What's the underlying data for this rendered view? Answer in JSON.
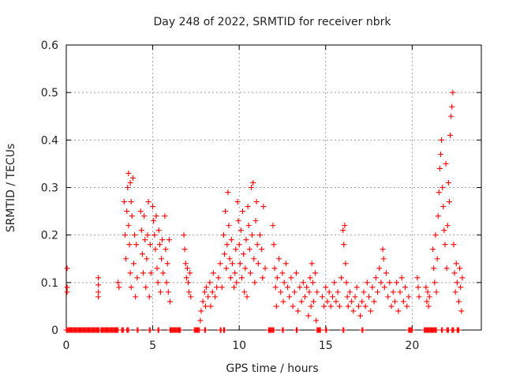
{
  "chart_data": {
    "type": "scatter",
    "title": "Day 248 of 2022, SRMTID for receiver nbrk",
    "xlabel": "GPS time / hours",
    "ylabel": "SRMTID / TECUs",
    "xlim": [
      0,
      24
    ],
    "ylim": [
      0,
      0.6
    ],
    "xticks": [
      0,
      5,
      10,
      15,
      20
    ],
    "yticks": [
      0,
      0.1,
      0.2,
      0.3,
      0.4,
      0.5,
      0.6
    ],
    "grid": true,
    "marker": "plus",
    "color": "#ff0000",
    "series": [
      {
        "name": "SRMTID",
        "points": [
          [
            0.05,
            0.13
          ],
          [
            0.05,
            0.09
          ],
          [
            0.05,
            0.08
          ],
          [
            1.85,
            0.11
          ],
          [
            1.85,
            0.08
          ],
          [
            1.85,
            0.07
          ],
          [
            1.85,
            0.095
          ],
          [
            3.0,
            0.1
          ],
          [
            3.05,
            0.09
          ],
          [
            3.35,
            0.27
          ],
          [
            3.4,
            0.2
          ],
          [
            3.45,
            0.15
          ],
          [
            3.5,
            0.25
          ],
          [
            3.55,
            0.3
          ],
          [
            3.6,
            0.33
          ],
          [
            3.6,
            0.22
          ],
          [
            3.65,
            0.18
          ],
          [
            3.7,
            0.31
          ],
          [
            3.7,
            0.12
          ],
          [
            3.75,
            0.27
          ],
          [
            3.75,
            0.09
          ],
          [
            3.8,
            0.24
          ],
          [
            3.85,
            0.32
          ],
          [
            3.9,
            0.14
          ],
          [
            3.95,
            0.2
          ],
          [
            4.0,
            0.07
          ],
          [
            4.05,
            0.18
          ],
          [
            4.1,
            0.11
          ],
          [
            4.3,
            0.25
          ],
          [
            4.35,
            0.21
          ],
          [
            4.4,
            0.16
          ],
          [
            4.45,
            0.12
          ],
          [
            4.5,
            0.24
          ],
          [
            4.55,
            0.19
          ],
          [
            4.6,
            0.09
          ],
          [
            4.65,
            0.15
          ],
          [
            4.7,
            0.2
          ],
          [
            4.75,
            0.27
          ],
          [
            4.8,
            0.07
          ],
          [
            4.85,
            0.18
          ],
          [
            4.9,
            0.12
          ],
          [
            5.0,
            0.26
          ],
          [
            5.05,
            0.23
          ],
          [
            5.1,
            0.2
          ],
          [
            5.15,
            0.17
          ],
          [
            5.2,
            0.24
          ],
          [
            5.25,
            0.13
          ],
          [
            5.3,
            0.1
          ],
          [
            5.35,
            0.21
          ],
          [
            5.4,
            0.18
          ],
          [
            5.45,
            0.08
          ],
          [
            5.5,
            0.15
          ],
          [
            5.55,
            0.19
          ],
          [
            5.6,
            0.12
          ],
          [
            5.7,
            0.24
          ],
          [
            5.75,
            0.17
          ],
          [
            5.8,
            0.1
          ],
          [
            5.85,
            0.14
          ],
          [
            5.9,
            0.08
          ],
          [
            5.95,
            0.19
          ],
          [
            6.0,
            0.06
          ],
          [
            6.8,
            0.2
          ],
          [
            6.85,
            0.17
          ],
          [
            6.9,
            0.14
          ],
          [
            6.95,
            0.11
          ],
          [
            7.0,
            0.13
          ],
          [
            7.05,
            0.1
          ],
          [
            7.1,
            0.08
          ],
          [
            7.15,
            0.12
          ],
          [
            7.2,
            0.07
          ],
          [
            7.75,
            0.02
          ],
          [
            7.8,
            0.04
          ],
          [
            7.9,
            0.06
          ],
          [
            8.0,
            0.08
          ],
          [
            8.05,
            0.05
          ],
          [
            8.1,
            0.09
          ],
          [
            8.2,
            0.07
          ],
          [
            8.3,
            0.1
          ],
          [
            8.35,
            0.05
          ],
          [
            8.45,
            0.08
          ],
          [
            8.5,
            0.12
          ],
          [
            8.6,
            0.07
          ],
          [
            8.7,
            0.09
          ],
          [
            8.8,
            0.11
          ],
          [
            8.9,
            0.14
          ],
          [
            9.0,
            0.09
          ],
          [
            9.1,
            0.2
          ],
          [
            9.15,
            0.16
          ],
          [
            9.2,
            0.25
          ],
          [
            9.25,
            0.13
          ],
          [
            9.3,
            0.18
          ],
          [
            9.35,
            0.29
          ],
          [
            9.4,
            0.22
          ],
          [
            9.45,
            0.15
          ],
          [
            9.5,
            0.11
          ],
          [
            9.55,
            0.19
          ],
          [
            9.6,
            0.14
          ],
          [
            9.7,
            0.09
          ],
          [
            9.75,
            0.12
          ],
          [
            9.8,
            0.17
          ],
          [
            9.85,
            0.1
          ],
          [
            9.9,
            0.27
          ],
          [
            9.95,
            0.23
          ],
          [
            10.0,
            0.18
          ],
          [
            10.05,
            0.14
          ],
          [
            10.1,
            0.21
          ],
          [
            10.15,
            0.11
          ],
          [
            10.2,
            0.25
          ],
          [
            10.25,
            0.16
          ],
          [
            10.3,
            0.08
          ],
          [
            10.35,
            0.13
          ],
          [
            10.4,
            0.19
          ],
          [
            10.45,
            0.07
          ],
          [
            10.5,
            0.26
          ],
          [
            10.55,
            0.22
          ],
          [
            10.6,
            0.17
          ],
          [
            10.65,
            0.12
          ],
          [
            10.7,
            0.3
          ],
          [
            10.75,
            0.2
          ],
          [
            10.8,
            0.31
          ],
          [
            10.85,
            0.15
          ],
          [
            10.9,
            0.1
          ],
          [
            10.95,
            0.23
          ],
          [
            11.0,
            0.27
          ],
          [
            11.05,
            0.18
          ],
          [
            11.1,
            0.14
          ],
          [
            11.2,
            0.2
          ],
          [
            11.3,
            0.17
          ],
          [
            11.35,
            0.11
          ],
          [
            11.4,
            0.26
          ],
          [
            11.5,
            0.13
          ],
          [
            11.95,
            0.22
          ],
          [
            12.0,
            0.18
          ],
          [
            12.05,
            0.13
          ],
          [
            12.1,
            0.09
          ],
          [
            12.15,
            0.05
          ],
          [
            12.2,
            0.11
          ],
          [
            12.3,
            0.15
          ],
          [
            12.4,
            0.08
          ],
          [
            12.5,
            0.12
          ],
          [
            12.55,
            0.06
          ],
          [
            12.6,
            0.1
          ],
          [
            12.7,
            0.14
          ],
          [
            12.8,
            0.09
          ],
          [
            12.9,
            0.07
          ],
          [
            13.0,
            0.11
          ],
          [
            13.1,
            0.05
          ],
          [
            13.2,
            0.08
          ],
          [
            13.3,
            0.12
          ],
          [
            13.4,
            0.04
          ],
          [
            13.5,
            0.09
          ],
          [
            13.6,
            0.06
          ],
          [
            13.7,
            0.1
          ],
          [
            13.8,
            0.07
          ],
          [
            13.9,
            0.09
          ],
          [
            14.0,
            0.03
          ],
          [
            14.05,
            0.08
          ],
          [
            14.1,
            0.11
          ],
          [
            14.15,
            0.05
          ],
          [
            14.2,
            0.14
          ],
          [
            14.25,
            0.1
          ],
          [
            14.3,
            0.06
          ],
          [
            14.4,
            0.12
          ],
          [
            14.45,
            0.02
          ],
          [
            14.5,
            0.08
          ],
          [
            14.8,
            0.07
          ],
          [
            14.9,
            0.05
          ],
          [
            15.0,
            0.09
          ],
          [
            15.1,
            0.06
          ],
          [
            15.2,
            0.08
          ],
          [
            15.3,
            0.05
          ],
          [
            15.4,
            0.07
          ],
          [
            15.5,
            0.1
          ],
          [
            15.6,
            0.06
          ],
          [
            15.7,
            0.08
          ],
          [
            15.8,
            0.05
          ],
          [
            15.9,
            0.11
          ],
          [
            16.0,
            0.21
          ],
          [
            16.05,
            0.18
          ],
          [
            16.1,
            0.22
          ],
          [
            16.15,
            0.14
          ],
          [
            16.2,
            0.1
          ],
          [
            16.25,
            0.07
          ],
          [
            16.3,
            0.05
          ],
          [
            16.4,
            0.08
          ],
          [
            16.5,
            0.06
          ],
          [
            16.6,
            0.04
          ],
          [
            16.7,
            0.07
          ],
          [
            16.8,
            0.09
          ],
          [
            16.9,
            0.05
          ],
          [
            17.0,
            0.03
          ],
          [
            17.1,
            0.06
          ],
          [
            17.2,
            0.08
          ],
          [
            17.3,
            0.05
          ],
          [
            17.4,
            0.1
          ],
          [
            17.5,
            0.07
          ],
          [
            17.6,
            0.04
          ],
          [
            17.7,
            0.09
          ],
          [
            17.8,
            0.06
          ],
          [
            17.9,
            0.11
          ],
          [
            18.0,
            0.08
          ],
          [
            18.1,
            0.13
          ],
          [
            18.2,
            0.1
          ],
          [
            18.3,
            0.17
          ],
          [
            18.35,
            0.15
          ],
          [
            18.4,
            0.09
          ],
          [
            18.5,
            0.12
          ],
          [
            18.6,
            0.07
          ],
          [
            18.7,
            0.1
          ],
          [
            18.8,
            0.05
          ],
          [
            18.9,
            0.08
          ],
          [
            19.0,
            0.06
          ],
          [
            19.1,
            0.1
          ],
          [
            19.2,
            0.04
          ],
          [
            19.3,
            0.08
          ],
          [
            19.4,
            0.11
          ],
          [
            19.5,
            0.06
          ],
          [
            19.6,
            0.09
          ],
          [
            19.7,
            0.05
          ],
          [
            19.8,
            0.07
          ],
          [
            20.3,
            0.11
          ],
          [
            20.35,
            0.09
          ],
          [
            20.4,
            0.07
          ],
          [
            20.8,
            0.09
          ],
          [
            20.85,
            0.06
          ],
          [
            20.9,
            0.08
          ],
          [
            20.95,
            0.05
          ],
          [
            21.0,
            0.07
          ],
          [
            21.2,
            0.17
          ],
          [
            21.25,
            0.13
          ],
          [
            21.3,
            0.1
          ],
          [
            21.35,
            0.2
          ],
          [
            21.4,
            0.08
          ],
          [
            21.45,
            0.15
          ],
          [
            21.5,
            0.24
          ],
          [
            21.55,
            0.29
          ],
          [
            21.6,
            0.34
          ],
          [
            21.65,
            0.37
          ],
          [
            21.7,
            0.4
          ],
          [
            21.75,
            0.3
          ],
          [
            21.8,
            0.26
          ],
          [
            21.85,
            0.21
          ],
          [
            21.9,
            0.18
          ],
          [
            21.95,
            0.35
          ],
          [
            22.0,
            0.13
          ],
          [
            22.05,
            0.22
          ],
          [
            22.1,
            0.31
          ],
          [
            22.15,
            0.27
          ],
          [
            22.2,
            0.41
          ],
          [
            22.25,
            0.45
          ],
          [
            22.3,
            0.47
          ],
          [
            22.35,
            0.5
          ],
          [
            22.4,
            0.18
          ],
          [
            22.45,
            0.12
          ],
          [
            22.5,
            0.08
          ],
          [
            22.55,
            0.14
          ],
          [
            22.6,
            0.1
          ],
          [
            22.7,
            0.06
          ],
          [
            22.75,
            0.13
          ],
          [
            22.8,
            0.09
          ],
          [
            22.85,
            0.04
          ],
          [
            22.9,
            0.11
          ]
        ],
        "zero_runs": [
          [
            0.0,
            1.9
          ],
          [
            2.0,
            3.0
          ],
          [
            3.2,
            3.3
          ],
          [
            3.5,
            3.6
          ],
          [
            4.1,
            4.15
          ],
          [
            4.8,
            4.85
          ],
          [
            5.3,
            5.35
          ],
          [
            6.0,
            6.6
          ],
          [
            7.4,
            7.6
          ],
          [
            7.6,
            7.7
          ],
          [
            8.0,
            8.05
          ],
          [
            8.9,
            8.95
          ],
          [
            9.1,
            9.15
          ],
          [
            11.7,
            12.0
          ],
          [
            12.5,
            12.55
          ],
          [
            13.3,
            13.35
          ],
          [
            14.5,
            14.7
          ],
          [
            15.0,
            15.05
          ],
          [
            16.0,
            16.05
          ],
          [
            17.1,
            17.15
          ],
          [
            19.8,
            20.0
          ],
          [
            20.7,
            21.4
          ],
          [
            21.7,
            21.75
          ],
          [
            22.0,
            22.1
          ],
          [
            22.3,
            22.4
          ],
          [
            22.6,
            22.7
          ]
        ]
      }
    ]
  }
}
